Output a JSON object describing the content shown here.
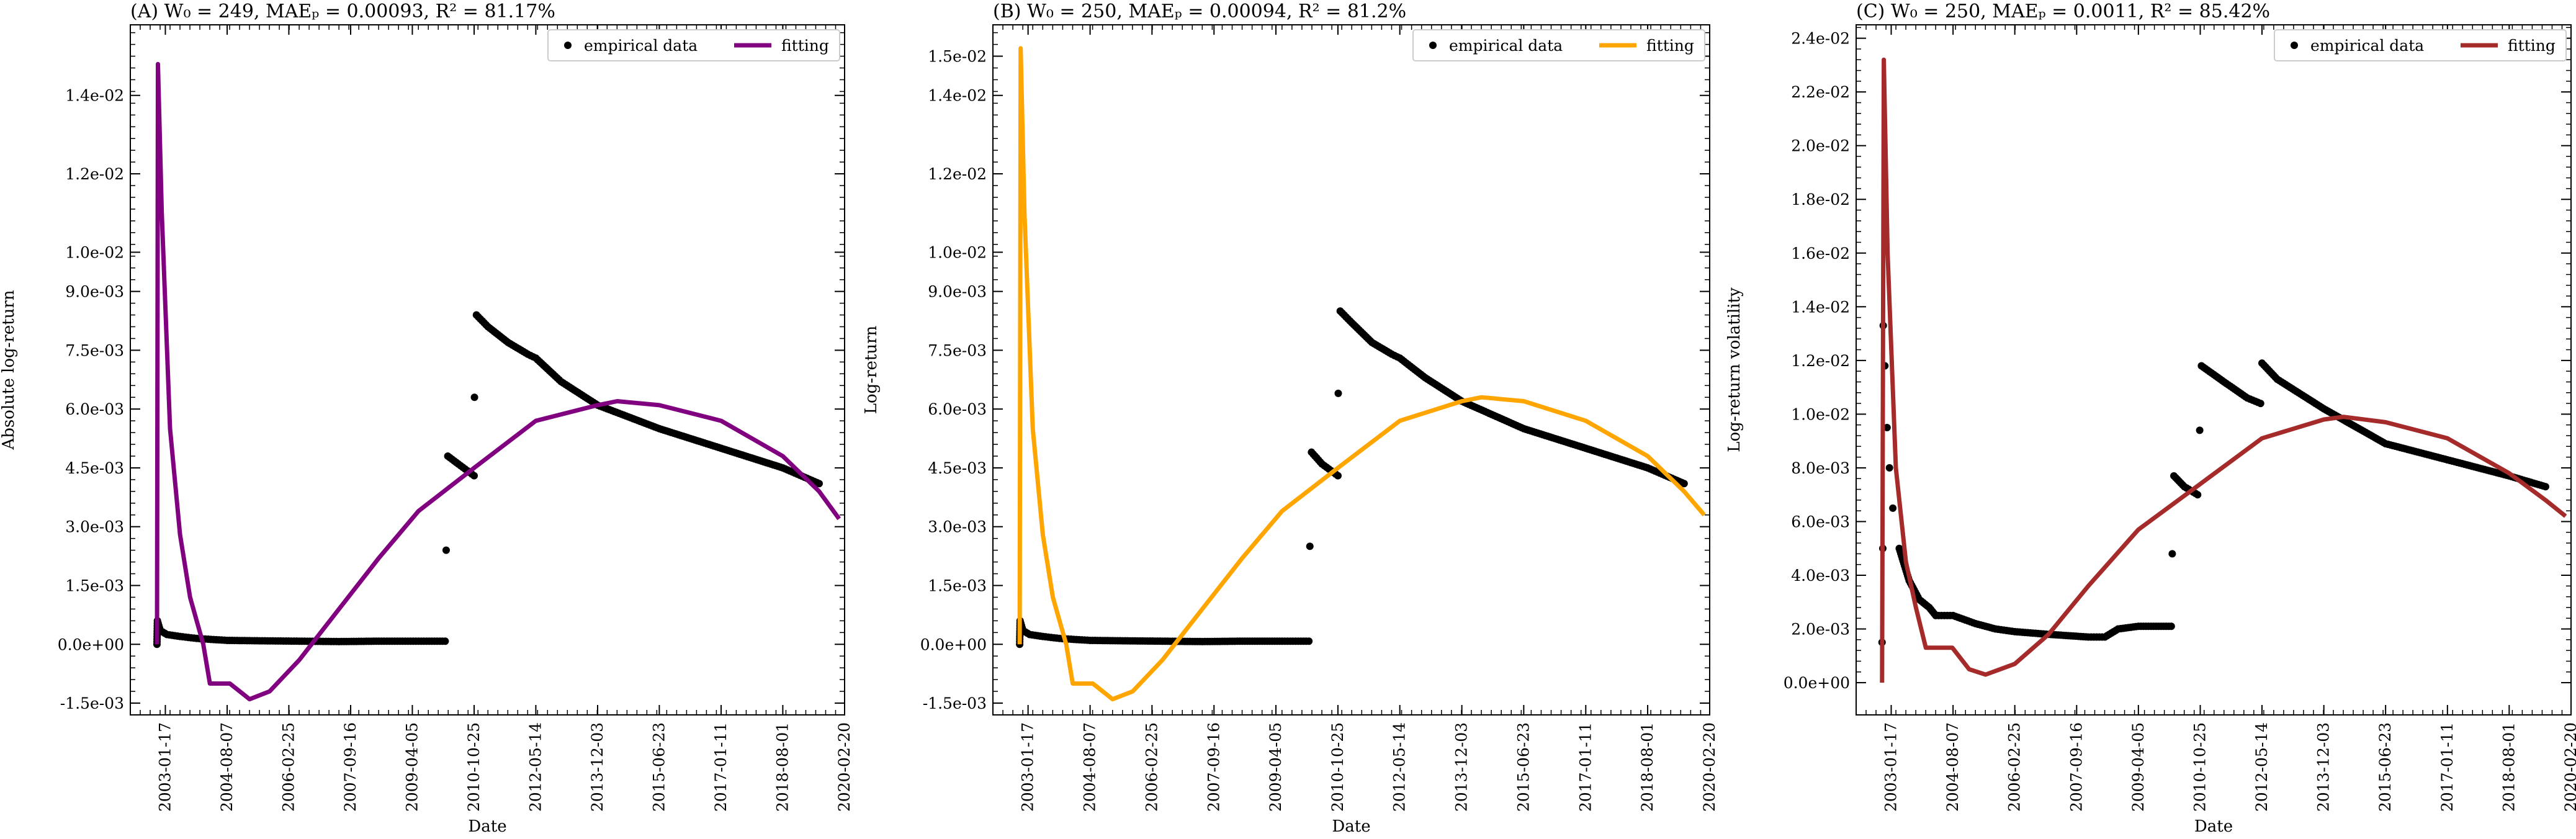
{
  "chart_data": [
    {
      "type": "line",
      "title": "(A) W₀ = 249, MAEₚ = 0.00093, R² = 81.17%",
      "xlabel": "Date",
      "ylabel": "Absolute log-return",
      "xlim": [
        "2002-03-01",
        "2020-02-20"
      ],
      "ylim": [
        -0.0018,
        0.0158
      ],
      "xticks": [
        "2003-01-17",
        "2004-08-07",
        "2006-02-25",
        "2007-09-16",
        "2009-04-05",
        "2010-10-25",
        "2012-05-14",
        "2013-12-03",
        "2015-06-23",
        "2017-01-11",
        "2018-08-01",
        "2020-02-20"
      ],
      "yticks": [
        -0.0015,
        0.0,
        0.0015,
        0.003,
        0.0045,
        0.006,
        0.0075,
        0.009,
        0.01,
        0.012,
        0.014
      ],
      "ytick_labels": [
        "-1.5e-03",
        "0.0e+00",
        "1.5e-03",
        "3.0e-03",
        "4.5e-03",
        "6.0e-03",
        "7.5e-03",
        "9.0e-03",
        "1.0e-02",
        "1.2e-02",
        "1.4e-02"
      ],
      "legend": {
        "position": "top-right",
        "entries": [
          "empirical data",
          "fitting"
        ]
      },
      "colors": {
        "fit": "#800080",
        "data": "#000000"
      },
      "series": [
        {
          "name": "empirical data",
          "kind": "scatter",
          "points": [
            [
              "2002-11-01",
              0.0
            ],
            [
              "2002-11-05",
              0.0006
            ],
            [
              "2002-12-01",
              0.00035
            ],
            [
              "2003-02-01",
              0.00025
            ],
            [
              "2003-06-01",
              0.0002
            ],
            [
              "2003-11-01",
              0.00015
            ],
            [
              "2004-02-15",
              0.00013
            ],
            [
              "2004-08-07",
              0.0001
            ],
            [
              "2005-06-01",
              9e-05
            ],
            [
              "2006-06-01",
              8e-05
            ],
            [
              "2007-06-01",
              7e-05
            ],
            [
              "2008-06-01",
              8e-05
            ],
            [
              "2009-06-01",
              8e-05
            ],
            [
              "2010-02-01",
              8e-05
            ],
            [
              "2010-02-10",
              0.0024
            ],
            [
              "2010-02-25",
              0.0048
            ],
            [
              "2010-06-01",
              0.0046
            ],
            [
              "2010-10-25",
              0.0043
            ],
            [
              "2010-10-28",
              0.0063
            ],
            [
              "2010-11-15",
              0.0084
            ],
            [
              "2011-03-01",
              0.0081
            ],
            [
              "2011-09-01",
              0.0077
            ],
            [
              "2012-03-01",
              0.0074
            ],
            [
              "2012-05-14",
              0.0073
            ],
            [
              "2013-01-01",
              0.0067
            ],
            [
              "2013-12-03",
              0.0061
            ],
            [
              "2015-06-23",
              0.0055
            ],
            [
              "2017-01-11",
              0.005
            ],
            [
              "2018-08-01",
              0.0045
            ],
            [
              "2019-07-01",
              0.0041
            ]
          ]
        },
        {
          "name": "fitting",
          "kind": "line",
          "points": [
            [
              "2002-11-01",
              0.0
            ],
            [
              "2002-11-10",
              0.0148
            ],
            [
              "2002-12-15",
              0.011
            ],
            [
              "2003-03-01",
              0.0055
            ],
            [
              "2003-06-01",
              0.0028
            ],
            [
              "2003-09-01",
              0.0012
            ],
            [
              "2004-01-01",
              0.0
            ],
            [
              "2004-03-01",
              -0.001
            ],
            [
              "2004-09-01",
              -0.001
            ],
            [
              "2005-03-01",
              -0.0014
            ],
            [
              "2005-09-01",
              -0.0012
            ],
            [
              "2006-06-01",
              -0.0004
            ],
            [
              "2007-06-01",
              0.0009
            ],
            [
              "2008-06-01",
              0.0022
            ],
            [
              "2009-06-01",
              0.0034
            ],
            [
              "2010-10-25",
              0.0045
            ],
            [
              "2012-05-14",
              0.0057
            ],
            [
              "2013-12-03",
              0.0061
            ],
            [
              "2014-06-01",
              0.0062
            ],
            [
              "2015-06-23",
              0.0061
            ],
            [
              "2017-01-11",
              0.0057
            ],
            [
              "2018-08-01",
              0.0048
            ],
            [
              "2019-07-01",
              0.0039
            ],
            [
              "2020-01-01",
              0.0032
            ]
          ]
        }
      ]
    },
    {
      "type": "line",
      "title": "(B) W₀ = 250, MAEₚ = 0.00094, R² = 81.2%",
      "xlabel": "Date",
      "ylabel": "Log-return",
      "xlim": [
        "2002-03-01",
        "2020-02-20"
      ],
      "ylim": [
        -0.0018,
        0.0158
      ],
      "xticks": [
        "2003-01-17",
        "2004-08-07",
        "2006-02-25",
        "2007-09-16",
        "2009-04-05",
        "2010-10-25",
        "2012-05-14",
        "2013-12-03",
        "2015-06-23",
        "2017-01-11",
        "2018-08-01",
        "2020-02-20"
      ],
      "yticks": [
        -0.0015,
        0.0,
        0.0015,
        0.003,
        0.0045,
        0.006,
        0.0075,
        0.009,
        0.01,
        0.012,
        0.014,
        0.015
      ],
      "ytick_labels": [
        "-1.5e-03",
        "0.0e+00",
        "1.5e-03",
        "3.0e-03",
        "4.5e-03",
        "6.0e-03",
        "7.5e-03",
        "9.0e-03",
        "1.0e-02",
        "1.2e-02",
        "1.4e-02",
        "1.5e-02"
      ],
      "legend": {
        "position": "top-right",
        "entries": [
          "empirical data",
          "fitting"
        ]
      },
      "colors": {
        "fit": "#FFA500",
        "data": "#000000"
      },
      "series": [
        {
          "name": "empirical data",
          "kind": "scatter",
          "points": [
            [
              "2002-11-01",
              0.0
            ],
            [
              "2002-11-05",
              0.0006
            ],
            [
              "2002-12-01",
              0.00035
            ],
            [
              "2003-02-01",
              0.00025
            ],
            [
              "2003-06-01",
              0.0002
            ],
            [
              "2003-11-01",
              0.00015
            ],
            [
              "2004-02-15",
              0.00013
            ],
            [
              "2004-08-07",
              0.0001
            ],
            [
              "2005-06-01",
              9e-05
            ],
            [
              "2006-06-01",
              8e-05
            ],
            [
              "2007-06-01",
              7e-05
            ],
            [
              "2008-06-01",
              8e-05
            ],
            [
              "2009-06-01",
              8e-05
            ],
            [
              "2010-02-01",
              8e-05
            ],
            [
              "2010-02-10",
              0.0025
            ],
            [
              "2010-02-25",
              0.0049
            ],
            [
              "2010-06-01",
              0.0046
            ],
            [
              "2010-10-25",
              0.0043
            ],
            [
              "2010-10-28",
              0.0064
            ],
            [
              "2010-11-15",
              0.0085
            ],
            [
              "2011-03-01",
              0.0082
            ],
            [
              "2011-09-01",
              0.0077
            ],
            [
              "2012-03-01",
              0.0074
            ],
            [
              "2012-05-14",
              0.0073
            ],
            [
              "2013-01-01",
              0.0068
            ],
            [
              "2013-12-03",
              0.0062
            ],
            [
              "2015-06-23",
              0.0055
            ],
            [
              "2017-01-11",
              0.005
            ],
            [
              "2018-08-01",
              0.0045
            ],
            [
              "2019-07-01",
              0.0041
            ]
          ]
        },
        {
          "name": "fitting",
          "kind": "line",
          "points": [
            [
              "2002-11-01",
              0.0
            ],
            [
              "2002-11-10",
              0.0152
            ],
            [
              "2002-12-15",
              0.011
            ],
            [
              "2003-03-01",
              0.0055
            ],
            [
              "2003-06-01",
              0.0028
            ],
            [
              "2003-09-01",
              0.0012
            ],
            [
              "2004-01-01",
              0.0
            ],
            [
              "2004-03-01",
              -0.001
            ],
            [
              "2004-09-01",
              -0.001
            ],
            [
              "2005-03-01",
              -0.0014
            ],
            [
              "2005-09-01",
              -0.0012
            ],
            [
              "2006-06-01",
              -0.0004
            ],
            [
              "2007-06-01",
              0.0009
            ],
            [
              "2008-06-01",
              0.0022
            ],
            [
              "2009-06-01",
              0.0034
            ],
            [
              "2010-10-25",
              0.0045
            ],
            [
              "2012-05-14",
              0.0057
            ],
            [
              "2013-12-03",
              0.0062
            ],
            [
              "2014-06-01",
              0.0063
            ],
            [
              "2015-06-23",
              0.0062
            ],
            [
              "2017-01-11",
              0.0057
            ],
            [
              "2018-08-01",
              0.0048
            ],
            [
              "2019-07-01",
              0.0039
            ],
            [
              "2020-01-01",
              0.0033
            ]
          ]
        }
      ]
    },
    {
      "type": "line",
      "title": "(C) W₀ = 250, MAEₚ = 0.0011, R² = 85.42%",
      "xlabel": "Date",
      "ylabel": "Log-return volatility",
      "xlim": [
        "2002-03-01",
        "2020-02-20"
      ],
      "ylim": [
        -0.0012,
        0.0245
      ],
      "xticks": [
        "2003-01-17",
        "2004-08-07",
        "2006-02-25",
        "2007-09-16",
        "2009-04-05",
        "2010-10-25",
        "2012-05-14",
        "2013-12-03",
        "2015-06-23",
        "2017-01-11",
        "2018-08-01",
        "2020-02-20"
      ],
      "yticks": [
        0.0,
        0.002,
        0.004,
        0.006,
        0.008,
        0.01,
        0.012,
        0.014,
        0.016,
        0.018,
        0.02,
        0.022,
        0.024
      ],
      "ytick_labels": [
        "0.0e+00",
        "2.0e-03",
        "4.0e-03",
        "6.0e-03",
        "8.0e-03",
        "1.0e-02",
        "1.2e-02",
        "1.4e-02",
        "1.6e-02",
        "1.8e-02",
        "2.0e-02",
        "2.2e-02",
        "2.4e-02"
      ],
      "legend": {
        "position": "top-right",
        "entries": [
          "empirical data",
          "fitting"
        ]
      },
      "colors": {
        "fit": "#A52A2A",
        "data": "#000000"
      },
      "series": [
        {
          "name": "empirical data",
          "kind": "scatter",
          "points": [
            [
              "2002-10-25",
              0.0015
            ],
            [
              "2002-11-01",
              0.005
            ],
            [
              "2002-11-05",
              0.0133
            ],
            [
              "2002-11-20",
              0.0118
            ],
            [
              "2002-12-10",
              0.0095
            ],
            [
              "2003-01-01",
              0.008
            ],
            [
              "2003-02-01",
              0.0065
            ],
            [
              "2003-04-01",
              0.005
            ],
            [
              "2003-07-01",
              0.0038
            ],
            [
              "2003-10-01",
              0.0031
            ],
            [
              "2004-01-01",
              0.0028
            ],
            [
              "2004-03-01",
              0.0025
            ],
            [
              "2004-08-07",
              0.0025
            ],
            [
              "2005-03-01",
              0.0022
            ],
            [
              "2005-09-01",
              0.002
            ],
            [
              "2006-02-25",
              0.0019
            ],
            [
              "2007-01-01",
              0.0018
            ],
            [
              "2008-01-01",
              0.0017
            ],
            [
              "2008-06-01",
              0.0017
            ],
            [
              "2008-10-01",
              0.002
            ],
            [
              "2009-04-05",
              0.0021
            ],
            [
              "2010-02-01",
              0.0021
            ],
            [
              "2010-02-10",
              0.0048
            ],
            [
              "2010-02-25",
              0.0077
            ],
            [
              "2010-06-01",
              0.0073
            ],
            [
              "2010-10-01",
              0.007
            ],
            [
              "2010-10-20",
              0.0094
            ],
            [
              "2010-11-05",
              0.0118
            ],
            [
              "2011-06-01",
              0.0112
            ],
            [
              "2012-01-01",
              0.0106
            ],
            [
              "2012-05-01",
              0.0104
            ],
            [
              "2012-05-14",
              0.0119
            ],
            [
              "2012-10-01",
              0.0113
            ],
            [
              "2013-12-03",
              0.0102
            ],
            [
              "2015-06-23",
              0.0089
            ],
            [
              "2017-01-11",
              0.0083
            ],
            [
              "2018-08-01",
              0.0077
            ],
            [
              "2019-07-01",
              0.0073
            ]
          ]
        },
        {
          "name": "fitting",
          "kind": "line",
          "points": [
            [
              "2002-10-25",
              0.0
            ],
            [
              "2002-11-10",
              0.0232
            ],
            [
              "2002-12-15",
              0.016
            ],
            [
              "2003-03-01",
              0.008
            ],
            [
              "2003-06-01",
              0.0045
            ],
            [
              "2003-09-01",
              0.0028
            ],
            [
              "2003-12-01",
              0.0013
            ],
            [
              "2004-08-01",
              0.0013
            ],
            [
              "2005-01-01",
              0.0005
            ],
            [
              "2005-06-01",
              0.0003
            ],
            [
              "2006-02-25",
              0.0007
            ],
            [
              "2007-01-01",
              0.0018
            ],
            [
              "2008-01-01",
              0.0036
            ],
            [
              "2009-04-05",
              0.0057
            ],
            [
              "2010-10-25",
              0.0074
            ],
            [
              "2012-05-14",
              0.0091
            ],
            [
              "2013-12-03",
              0.0098
            ],
            [
              "2014-06-01",
              0.0099
            ],
            [
              "2015-06-23",
              0.0097
            ],
            [
              "2017-01-11",
              0.0091
            ],
            [
              "2018-08-01",
              0.0078
            ],
            [
              "2019-07-01",
              0.0068
            ],
            [
              "2020-01-01",
              0.0062
            ]
          ]
        }
      ]
    }
  ]
}
